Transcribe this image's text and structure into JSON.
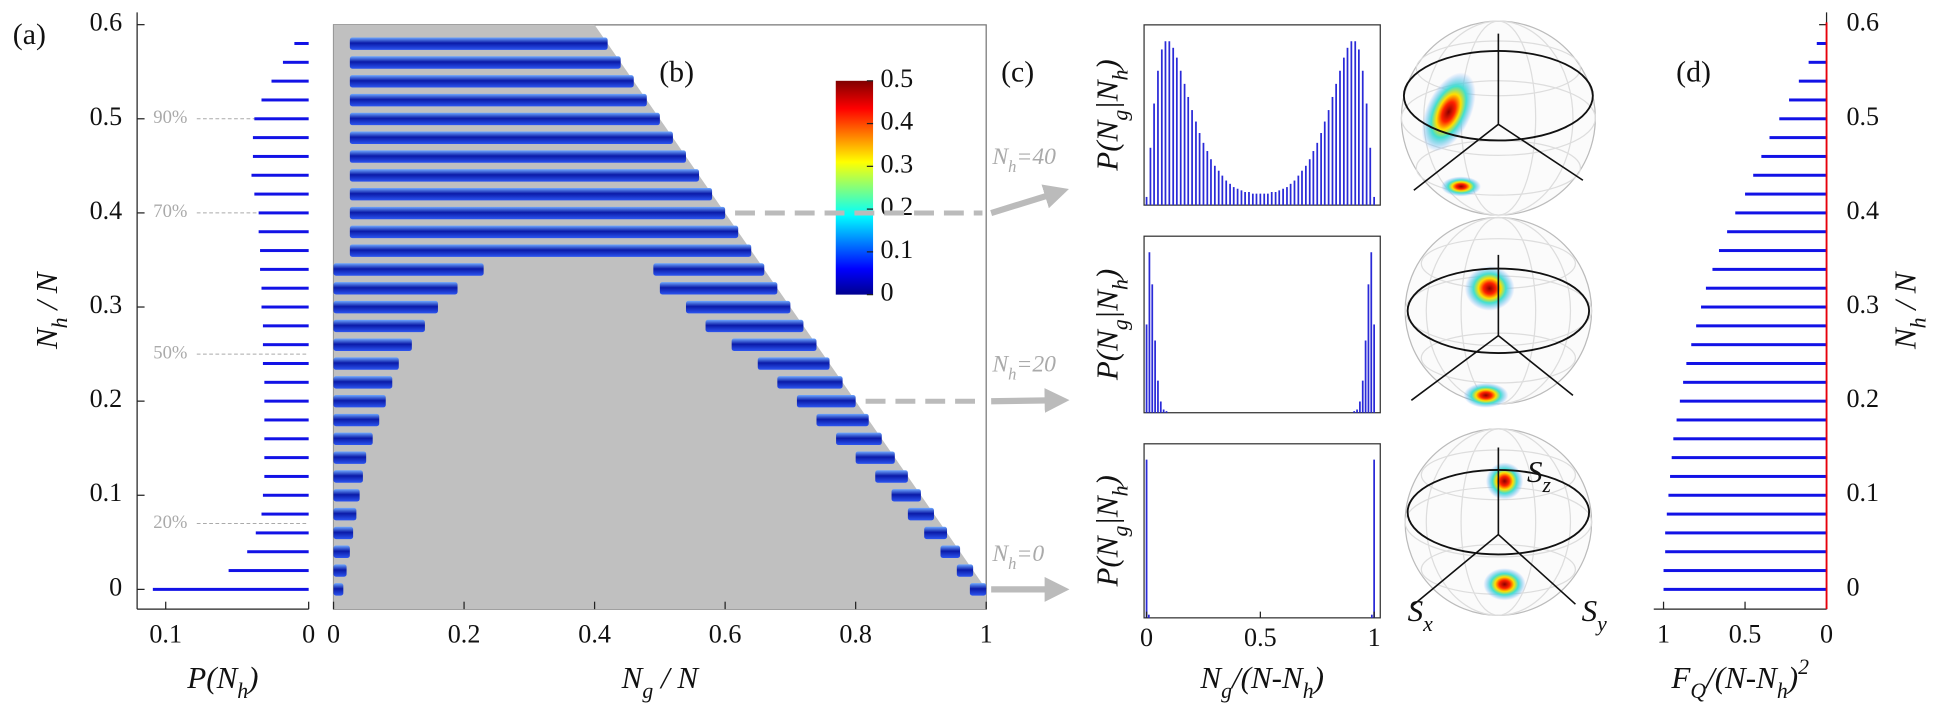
{
  "chart_data": [
    {
      "type": "hbar",
      "panel_label": "(a)",
      "yaxis": "left",
      "color": "#1212e6",
      "xlabel": [
        "P(N",
        "h",
        ")"
      ],
      "ylabel": [
        "N",
        "h",
        " / N"
      ],
      "xlim": [
        0.12,
        0
      ],
      "xticks": [
        0.1,
        0
      ],
      "ylim": [
        -0.021,
        0.613
      ],
      "yticks": [
        0,
        0.1,
        0.2,
        0.3,
        0.4,
        0.5,
        0.6
      ],
      "y": [
        0,
        0.02,
        0.04,
        0.06,
        0.08,
        0.1,
        0.12,
        0.14,
        0.16,
        0.18,
        0.2,
        0.22,
        0.24,
        0.26,
        0.28,
        0.3,
        0.32,
        0.34,
        0.36,
        0.38,
        0.4,
        0.42,
        0.44,
        0.46,
        0.48,
        0.5,
        0.52,
        0.54,
        0.56,
        0.58
      ],
      "values": [
        0.109,
        0.056,
        0.043,
        0.037,
        0.033,
        0.032,
        0.031,
        0.031,
        0.031,
        0.031,
        0.031,
        0.031,
        0.032,
        0.032,
        0.032,
        0.033,
        0.033,
        0.034,
        0.034,
        0.035,
        0.035,
        0.038,
        0.04,
        0.039,
        0.039,
        0.038,
        0.033,
        0.026,
        0.018,
        0.01
      ],
      "annotations": [
        {
          "label": "20%",
          "y": 0.07
        },
        {
          "label": "50%",
          "y": 0.25
        },
        {
          "label": "70%",
          "y": 0.4
        },
        {
          "label": "90%",
          "y": 0.5
        }
      ]
    },
    {
      "type": "heatmap",
      "panel_label": "(b)",
      "xlabel": [
        "N",
        "g",
        " / N"
      ],
      "xlim": [
        0,
        1
      ],
      "xticks": [
        0,
        0.2,
        0.4,
        0.6,
        0.8,
        1
      ],
      "ylim": [
        -0.021,
        0.6
      ],
      "strips": [
        {
          "y": 0,
          "x": [
            0,
            0.015
          ]
        },
        {
          "y": 0,
          "x": [
            0.975,
            1
          ]
        },
        {
          "y": 0.02,
          "x": [
            0,
            0.02
          ]
        },
        {
          "y": 0.02,
          "x": [
            0.955,
            0.98
          ]
        },
        {
          "y": 0.04,
          "x": [
            0,
            0.025
          ]
        },
        {
          "y": 0.04,
          "x": [
            0.93,
            0.96
          ]
        },
        {
          "y": 0.06,
          "x": [
            0,
            0.03
          ]
        },
        {
          "y": 0.06,
          "x": [
            0.905,
            0.94
          ]
        },
        {
          "y": 0.08,
          "x": [
            0,
            0.035
          ]
        },
        {
          "y": 0.08,
          "x": [
            0.88,
            0.92
          ]
        },
        {
          "y": 0.1,
          "x": [
            0,
            0.04
          ]
        },
        {
          "y": 0.1,
          "x": [
            0.855,
            0.9
          ]
        },
        {
          "y": 0.12,
          "x": [
            0,
            0.045
          ]
        },
        {
          "y": 0.12,
          "x": [
            0.83,
            0.88
          ]
        },
        {
          "y": 0.14,
          "x": [
            0,
            0.05
          ]
        },
        {
          "y": 0.14,
          "x": [
            0.8,
            0.86
          ]
        },
        {
          "y": 0.16,
          "x": [
            0,
            0.06
          ]
        },
        {
          "y": 0.16,
          "x": [
            0.77,
            0.84
          ]
        },
        {
          "y": 0.18,
          "x": [
            0,
            0.07
          ]
        },
        {
          "y": 0.18,
          "x": [
            0.74,
            0.82
          ]
        },
        {
          "y": 0.2,
          "x": [
            0,
            0.08
          ]
        },
        {
          "y": 0.2,
          "x": [
            0.71,
            0.8
          ]
        },
        {
          "y": 0.22,
          "x": [
            0,
            0.09
          ]
        },
        {
          "y": 0.22,
          "x": [
            0.68,
            0.78
          ]
        },
        {
          "y": 0.24,
          "x": [
            0,
            0.1
          ]
        },
        {
          "y": 0.24,
          "x": [
            0.65,
            0.76
          ]
        },
        {
          "y": 0.26,
          "x": [
            0,
            0.12
          ]
        },
        {
          "y": 0.26,
          "x": [
            0.61,
            0.74
          ]
        },
        {
          "y": 0.28,
          "x": [
            0,
            0.14
          ]
        },
        {
          "y": 0.28,
          "x": [
            0.57,
            0.72
          ]
        },
        {
          "y": 0.3,
          "x": [
            0,
            0.16
          ]
        },
        {
          "y": 0.3,
          "x": [
            0.54,
            0.7
          ]
        },
        {
          "y": 0.32,
          "x": [
            0,
            0.19
          ]
        },
        {
          "y": 0.32,
          "x": [
            0.5,
            0.68
          ]
        },
        {
          "y": 0.34,
          "x": [
            0,
            0.23
          ]
        },
        {
          "y": 0.34,
          "x": [
            0.49,
            0.66
          ]
        },
        {
          "y": 0.36,
          "x": [
            0.025,
            0.64
          ]
        },
        {
          "y": 0.38,
          "x": [
            0.025,
            0.62
          ]
        },
        {
          "y": 0.4,
          "x": [
            0.025,
            0.6
          ]
        },
        {
          "y": 0.42,
          "x": [
            0.025,
            0.58
          ]
        },
        {
          "y": 0.44,
          "x": [
            0.025,
            0.56
          ]
        },
        {
          "y": 0.46,
          "x": [
            0.025,
            0.54
          ]
        },
        {
          "y": 0.48,
          "x": [
            0.025,
            0.52
          ]
        },
        {
          "y": 0.5,
          "x": [
            0.025,
            0.5
          ]
        },
        {
          "y": 0.52,
          "x": [
            0.025,
            0.48
          ]
        },
        {
          "y": 0.54,
          "x": [
            0.025,
            0.46
          ]
        },
        {
          "y": 0.56,
          "x": [
            0.025,
            0.44
          ]
        },
        {
          "y": 0.58,
          "x": [
            0.025,
            0.42
          ]
        }
      ],
      "colorbar": {
        "lim": [
          0,
          0.5
        ],
        "ticks": [
          0,
          0.1,
          0.2,
          0.3,
          0.4,
          0.5
        ]
      }
    },
    {
      "type": "bar",
      "panel_label": "(c)",
      "color": "#2a2ad8",
      "ylabel": [
        "P(N",
        "g",
        "|N",
        "h",
        ")"
      ],
      "ylim": [
        0,
        1.1
      ],
      "annotation": {
        "label": [
          "N",
          "h",
          "=40"
        ],
        "y": 0.4
      },
      "x": [
        0,
        0.017,
        0.033,
        0.05,
        0.067,
        0.083,
        0.1,
        0.117,
        0.133,
        0.15,
        0.167,
        0.183,
        0.2,
        0.217,
        0.233,
        0.25,
        0.267,
        0.283,
        0.3,
        0.317,
        0.333,
        0.35,
        0.367,
        0.383,
        0.4,
        0.417,
        0.433,
        0.45,
        0.467,
        0.483,
        0.5,
        0.517,
        0.533,
        0.55,
        0.567,
        0.583,
        0.6,
        0.617,
        0.633,
        0.65,
        0.667,
        0.683,
        0.7,
        0.717,
        0.733,
        0.75,
        0.767,
        0.783,
        0.8,
        0.817,
        0.833,
        0.85,
        0.867,
        0.883,
        0.9,
        0.917,
        0.933,
        0.95,
        0.967,
        0.983,
        1
      ],
      "values": [
        0.05,
        0.35,
        0.62,
        0.82,
        0.95,
        1.0,
        1.0,
        0.96,
        0.9,
        0.82,
        0.74,
        0.66,
        0.58,
        0.51,
        0.44,
        0.38,
        0.33,
        0.28,
        0.24,
        0.21,
        0.18,
        0.15,
        0.13,
        0.11,
        0.1,
        0.09,
        0.08,
        0.08,
        0.07,
        0.07,
        0.07,
        0.07,
        0.07,
        0.08,
        0.08,
        0.09,
        0.1,
        0.11,
        0.13,
        0.15,
        0.18,
        0.21,
        0.24,
        0.28,
        0.33,
        0.38,
        0.44,
        0.51,
        0.58,
        0.66,
        0.74,
        0.82,
        0.9,
        0.96,
        1.0,
        1.0,
        0.95,
        0.82,
        0.62,
        0.35,
        0.05
      ]
    },
    {
      "type": "bar",
      "color": "#2a2ad8",
      "ylabel": [
        "P(N",
        "g",
        "|N",
        "h",
        ")"
      ],
      "ylim": [
        0,
        1.1
      ],
      "annotation": {
        "label": [
          "N",
          "h",
          "=20"
        ],
        "y": 0.2
      },
      "x": [
        0,
        0.0125,
        0.025,
        0.0375,
        0.05,
        0.0625,
        0.075,
        0.0875,
        0.9125,
        0.925,
        0.9375,
        0.95,
        0.9625,
        0.975,
        0.9875,
        1
      ],
      "values": [
        0.55,
        1.0,
        0.8,
        0.45,
        0.2,
        0.07,
        0.02,
        0.01,
        0.01,
        0.02,
        0.07,
        0.2,
        0.45,
        0.8,
        1.0,
        0.55
      ]
    },
    {
      "type": "bar",
      "color": "#2a2ad8",
      "ylabel": [
        "P(N",
        "g",
        "|N",
        "h",
        ")"
      ],
      "ylim": [
        0,
        1.1
      ],
      "xlabel": [
        "N",
        "g",
        "/(N-N",
        "h",
        ")"
      ],
      "xticks": [
        0,
        0.5,
        1
      ],
      "annotation": {
        "label": [
          "N",
          "h",
          "=0"
        ],
        "y": 0
      },
      "x": [
        0,
        0.01,
        0.99,
        1
      ],
      "values": [
        1.0,
        0.02,
        0.02,
        1.0
      ]
    },
    {
      "type": "hbar",
      "panel_label": "(d)",
      "yaxis": "right",
      "color": "#1212e6",
      "xlabel": [
        "F",
        "Q",
        "/(N-N",
        "h",
        ")"
      ],
      "xlabel_sup": "2",
      "ylabel": [
        "N",
        "h",
        " / N"
      ],
      "xlim": [
        1.06,
        0
      ],
      "xticks": [
        1,
        0.5,
        0
      ],
      "ylim": [
        -0.021,
        0.613
      ],
      "yticks": [
        0,
        0.1,
        0.2,
        0.3,
        0.4,
        0.5,
        0.6
      ],
      "y": [
        0,
        0.02,
        0.04,
        0.06,
        0.08,
        0.1,
        0.12,
        0.14,
        0.16,
        0.18,
        0.2,
        0.22,
        0.24,
        0.26,
        0.28,
        0.3,
        0.32,
        0.34,
        0.36,
        0.38,
        0.4,
        0.42,
        0.44,
        0.46,
        0.48,
        0.5,
        0.52,
        0.54,
        0.56,
        0.58
      ],
      "values": [
        1.0,
        1.0,
        0.99,
        0.99,
        0.98,
        0.97,
        0.96,
        0.95,
        0.94,
        0.92,
        0.9,
        0.88,
        0.86,
        0.83,
        0.8,
        0.77,
        0.74,
        0.7,
        0.66,
        0.61,
        0.56,
        0.5,
        0.45,
        0.4,
        0.35,
        0.29,
        0.23,
        0.17,
        0.11,
        0.06
      ],
      "reference_line": {
        "value": 0,
        "color": "#e8000b"
      }
    }
  ],
  "spheres": {
    "labels": [
      [
        "S",
        "z"
      ],
      [
        "S",
        "x"
      ],
      [
        "S",
        "y"
      ]
    ]
  }
}
